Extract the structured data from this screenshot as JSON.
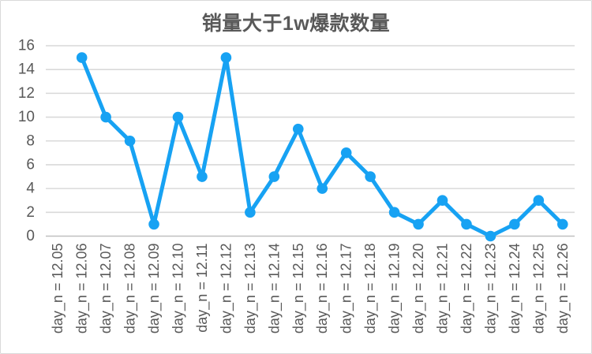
{
  "chart_data": {
    "type": "line",
    "title": "销量大于1w爆款数量",
    "categories": [
      "day_n = 12.05",
      "day_n = 12.06",
      "day_n = 12.07",
      "day_n = 12.08",
      "day_n = 12.09",
      "day_n = 12.10",
      "day_n = 12.11",
      "day_n = 12.12",
      "day_n = 12.13",
      "day_n = 12.14",
      "day_n = 12.15",
      "day_n = 12.16",
      "day_n = 12.17",
      "day_n = 12.18",
      "day_n = 12.19",
      "day_n = 12.20",
      "day_n = 12.21",
      "day_n = 12.22",
      "day_n = 12.23",
      "day_n = 12.24",
      "day_n = 12.25",
      "day_n = 12.26"
    ],
    "values": [
      null,
      15,
      10,
      8,
      1,
      10,
      5,
      15,
      2,
      5,
      9,
      4,
      7,
      5,
      2,
      1,
      3,
      1,
      0,
      1,
      3,
      1
    ],
    "xlabel": "",
    "ylabel": "",
    "ylim": [
      0,
      16
    ],
    "y_ticks": [
      0,
      2,
      4,
      6,
      8,
      10,
      12,
      14,
      16
    ],
    "grid": true,
    "legend_position": "none",
    "x_label_rotation": -90,
    "colors": {
      "line": "#17a2f3",
      "marker": "#17a2f3",
      "grid": "#d9d9d9",
      "axis": "#bfbfbf",
      "tick_label": "#595959",
      "title": "#595959",
      "background": "#ffffff",
      "frame_border": "#d9d9d9"
    }
  }
}
